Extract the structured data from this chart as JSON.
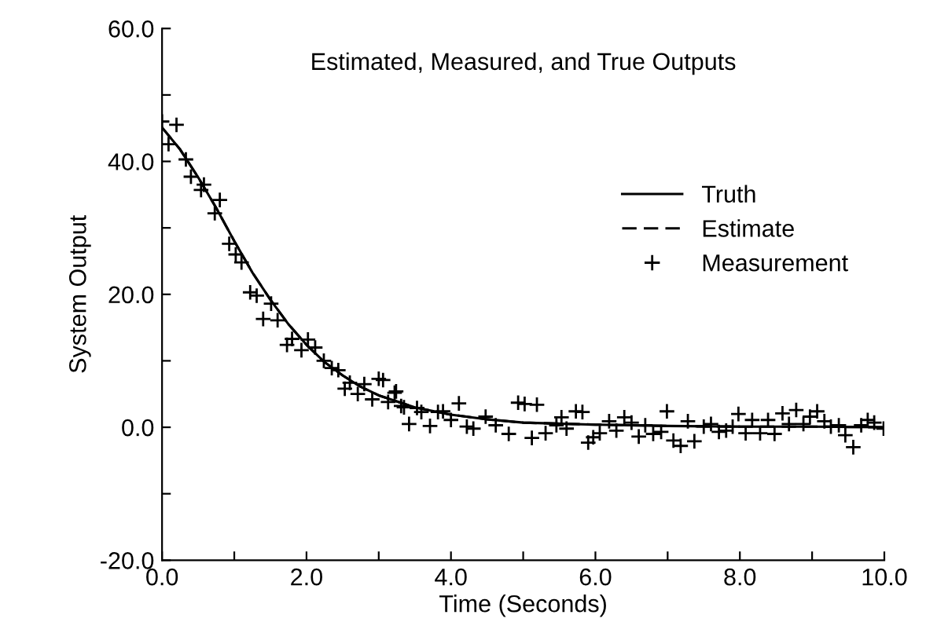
{
  "chart_data": {
    "type": "line",
    "title": "Estimated, Measured, and True Outputs",
    "xlabel": "Time (Seconds)",
    "ylabel": "System Output",
    "xlim": [
      0,
      10
    ],
    "ylim": [
      -20,
      60
    ],
    "xticks": [
      {
        "value": 0,
        "label": "0.0"
      },
      {
        "value": 1,
        "label": null
      },
      {
        "value": 2,
        "label": "2.0"
      },
      {
        "value": 3,
        "label": null
      },
      {
        "value": 4,
        "label": "4.0"
      },
      {
        "value": 5,
        "label": null
      },
      {
        "value": 6,
        "label": "6.0"
      },
      {
        "value": 7,
        "label": null
      },
      {
        "value": 8,
        "label": "8.0"
      },
      {
        "value": 9,
        "label": null
      },
      {
        "value": 10,
        "label": "10.0"
      }
    ],
    "yticks": [
      {
        "value": -20,
        "label": "-20.0"
      },
      {
        "value": -10,
        "label": null
      },
      {
        "value": 0,
        "label": "0.0"
      },
      {
        "value": 10,
        "label": null
      },
      {
        "value": 20,
        "label": "20.0"
      },
      {
        "value": 30,
        "label": null
      },
      {
        "value": 40,
        "label": "40.0"
      },
      {
        "value": 50,
        "label": null
      },
      {
        "value": 60,
        "label": "60.0"
      }
    ],
    "grid": false,
    "legend": "right",
    "series": [
      {
        "name": "Truth",
        "line_style": "solid",
        "marker": "none",
        "color": "#000000",
        "x": [
          0,
          0.25,
          0.5,
          0.75,
          1.0,
          1.25,
          1.5,
          1.75,
          2.0,
          2.25,
          2.5,
          2.75,
          3.0,
          3.5,
          4.0,
          4.5,
          5.0,
          6.0,
          7.0,
          8.0,
          9.0,
          10.0
        ],
        "values": [
          45.1,
          41.8,
          37.6,
          33.0,
          28.0,
          23.3,
          19.2,
          15.5,
          12.4,
          9.8,
          7.8,
          6.1,
          4.8,
          3.0,
          1.9,
          1.2,
          0.7,
          0.4,
          0.2,
          0.1,
          0.1,
          0.0
        ]
      },
      {
        "name": "Estimate",
        "line_style": "dashed",
        "marker": "none",
        "color": "#000000",
        "x": [
          0,
          0.25,
          0.5,
          0.75,
          1.0,
          1.25,
          1.5,
          1.75,
          2.0,
          2.25,
          2.5,
          2.75,
          3.0,
          3.5,
          4.0,
          4.5,
          5.0,
          6.0,
          7.0,
          8.0,
          9.0,
          10.0
        ],
        "values": [
          45.1,
          41.8,
          37.6,
          33.0,
          28.0,
          23.3,
          19.2,
          15.5,
          12.4,
          9.8,
          7.8,
          6.1,
          4.8,
          3.0,
          1.9,
          1.2,
          0.7,
          0.4,
          0.2,
          0.1,
          0.1,
          0.0
        ]
      },
      {
        "name": "Measurement",
        "type": "scatter",
        "marker": "cross",
        "color": "#000000",
        "x": [
          0,
          0.2,
          0.09,
          0.33,
          0.4,
          0.54,
          0.58,
          0.8,
          0.73,
          0.93,
          1.02,
          1.1,
          1.22,
          1.31,
          1.51,
          1.4,
          1.6,
          1.73,
          1.8,
          1.93,
          2.02,
          2.12,
          2.24,
          2.35,
          2.44,
          2.53,
          2.6,
          2.71,
          2.8,
          2.91,
          3.0,
          3.13,
          3.22,
          3.31,
          3.06,
          3.24,
          3.35,
          3.53,
          3.42,
          3.59,
          3.71,
          3.82,
          3.89,
          4.0,
          4.11,
          4.22,
          4.31,
          4.48,
          4.62,
          4.8,
          4.93,
          5.02,
          5.19,
          5.12,
          5.31,
          5.46,
          5.53,
          5.6,
          5.73,
          5.82,
          5.9,
          5.97,
          6.06,
          6.19,
          6.29,
          6.4,
          6.5,
          6.6,
          6.69,
          6.8,
          6.91,
          6.99,
          7.08,
          7.18,
          7.28,
          7.37,
          7.5,
          7.6,
          7.71,
          7.81,
          7.9,
          7.98,
          8.08,
          8.17,
          8.28,
          8.39,
          8.48,
          8.59,
          8.68,
          8.78,
          8.88,
          8.97,
          9.07,
          9.17,
          9.26,
          9.37,
          9.46,
          9.57,
          9.68,
          9.77,
          9.86,
          9.99
        ],
        "values": [
          46.0,
          45.5,
          42.6,
          40.3,
          37.7,
          35.7,
          36.5,
          34.2,
          32.2,
          27.6,
          26.0,
          24.8,
          20.3,
          19.8,
          18.6,
          16.3,
          16.1,
          12.4,
          13.3,
          11.6,
          13.2,
          12.0,
          10.0,
          8.9,
          8.6,
          5.8,
          6.7,
          5.0,
          6.5,
          4.2,
          7.3,
          3.8,
          5.2,
          3.2,
          7.1,
          5.4,
          3.0,
          2.9,
          0.5,
          2.3,
          0.2,
          2.3,
          2.4,
          1.1,
          3.6,
          0.1,
          -0.2,
          1.6,
          0.3,
          -1.0,
          3.7,
          3.5,
          3.4,
          -1.6,
          -0.9,
          0.3,
          1.5,
          -0.2,
          2.4,
          2.3,
          -2.3,
          -1.5,
          -0.9,
          0.9,
          -0.5,
          1.5,
          0.7,
          -1.4,
          0.3,
          -1.0,
          -0.7,
          2.4,
          -2.0,
          -2.8,
          0.9,
          -2.1,
          0.1,
          0.5,
          -0.7,
          -0.5,
          0.1,
          2.0,
          -0.9,
          1.1,
          -0.9,
          1.1,
          -1.0,
          2.1,
          0.5,
          2.6,
          0.5,
          1.6,
          2.4,
          0.9,
          0.1,
          0.3,
          -1.2,
          -3.0,
          0.3,
          1.1,
          0.7,
          -0.2
        ]
      }
    ]
  }
}
